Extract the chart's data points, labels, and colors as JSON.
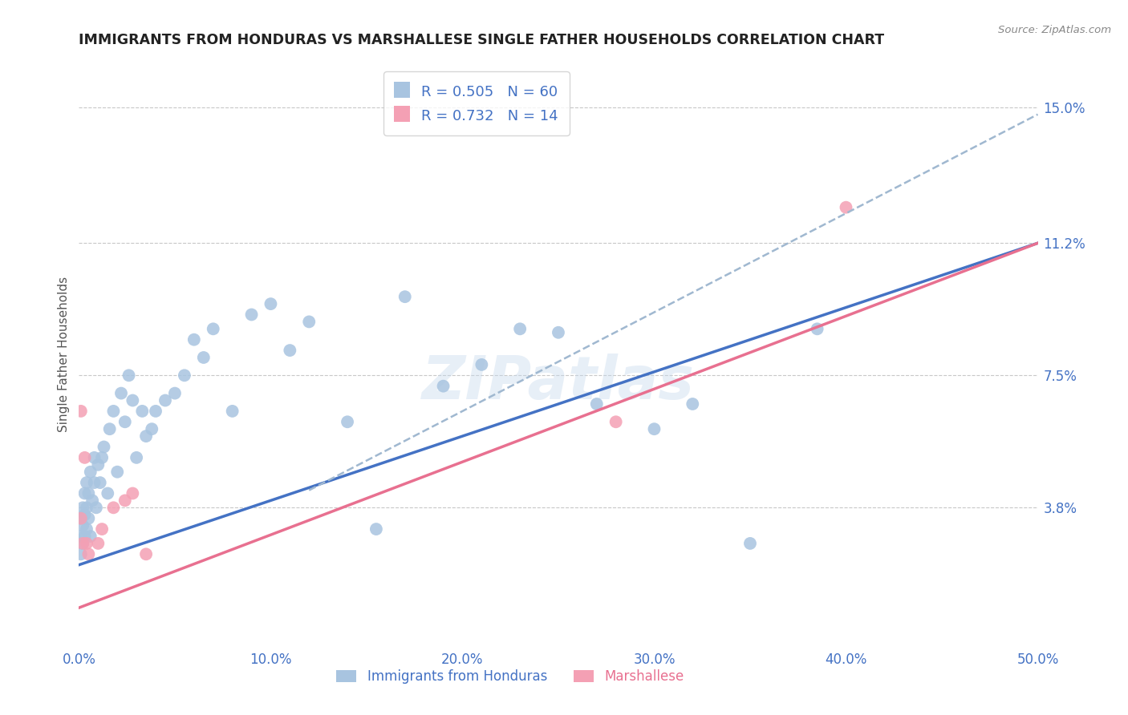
{
  "title": "IMMIGRANTS FROM HONDURAS VS MARSHALLESE SINGLE FATHER HOUSEHOLDS CORRELATION CHART",
  "source": "Source: ZipAtlas.com",
  "ylabel": "Single Father Households",
  "xlim": [
    0.0,
    0.5
  ],
  "ylim": [
    0.0,
    0.162
  ],
  "xticks": [
    0.0,
    0.1,
    0.2,
    0.3,
    0.4,
    0.5
  ],
  "xtick_labels": [
    "0.0%",
    "10.0%",
    "20.0%",
    "30.0%",
    "40.0%",
    "50.0%"
  ],
  "yticks": [
    0.038,
    0.075,
    0.112,
    0.15
  ],
  "ytick_labels": [
    "3.8%",
    "7.5%",
    "11.2%",
    "15.0%"
  ],
  "grid_color": "#c8c8c8",
  "background_color": "#ffffff",
  "title_color": "#222222",
  "tick_label_color": "#4472c4",
  "watermark": "ZIPatlas",
  "blue_dot_color": "#a8c4e0",
  "pink_dot_color": "#f4a0b4",
  "blue_line_color": "#4472c4",
  "pink_line_color": "#e87090",
  "dashed_line_color": "#a0b8d0",
  "blue_dots_x": [
    0.001,
    0.001,
    0.001,
    0.002,
    0.002,
    0.002,
    0.003,
    0.003,
    0.003,
    0.004,
    0.004,
    0.004,
    0.005,
    0.005,
    0.006,
    0.006,
    0.007,
    0.008,
    0.008,
    0.009,
    0.01,
    0.011,
    0.012,
    0.013,
    0.015,
    0.016,
    0.018,
    0.02,
    0.022,
    0.024,
    0.026,
    0.028,
    0.03,
    0.033,
    0.035,
    0.038,
    0.04,
    0.045,
    0.05,
    0.055,
    0.06,
    0.065,
    0.07,
    0.08,
    0.09,
    0.1,
    0.11,
    0.12,
    0.14,
    0.155,
    0.17,
    0.19,
    0.21,
    0.23,
    0.25,
    0.27,
    0.3,
    0.32,
    0.35,
    0.385
  ],
  "blue_dots_y": [
    0.025,
    0.03,
    0.035,
    0.028,
    0.033,
    0.038,
    0.03,
    0.036,
    0.042,
    0.032,
    0.038,
    0.045,
    0.035,
    0.042,
    0.03,
    0.048,
    0.04,
    0.045,
    0.052,
    0.038,
    0.05,
    0.045,
    0.052,
    0.055,
    0.042,
    0.06,
    0.065,
    0.048,
    0.07,
    0.062,
    0.075,
    0.068,
    0.052,
    0.065,
    0.058,
    0.06,
    0.065,
    0.068,
    0.07,
    0.075,
    0.085,
    0.08,
    0.088,
    0.065,
    0.092,
    0.095,
    0.082,
    0.09,
    0.062,
    0.032,
    0.097,
    0.072,
    0.078,
    0.088,
    0.087,
    0.067,
    0.06,
    0.067,
    0.028,
    0.088
  ],
  "pink_dots_x": [
    0.001,
    0.001,
    0.002,
    0.003,
    0.004,
    0.005,
    0.01,
    0.012,
    0.018,
    0.024,
    0.028,
    0.035,
    0.28,
    0.4
  ],
  "pink_dots_y": [
    0.035,
    0.065,
    0.028,
    0.052,
    0.028,
    0.025,
    0.028,
    0.032,
    0.038,
    0.04,
    0.042,
    0.025,
    0.062,
    0.122
  ],
  "blue_line_x0": 0.0,
  "blue_line_y0": 0.022,
  "blue_line_x1": 0.5,
  "blue_line_y1": 0.112,
  "pink_line_x0": 0.0,
  "pink_line_y0": 0.01,
  "pink_line_x1": 0.5,
  "pink_line_y1": 0.112,
  "dash_line_x0": 0.2,
  "dash_line_y0": 0.065,
  "dash_line_x1": 0.5,
  "dash_line_y1": 0.148
}
